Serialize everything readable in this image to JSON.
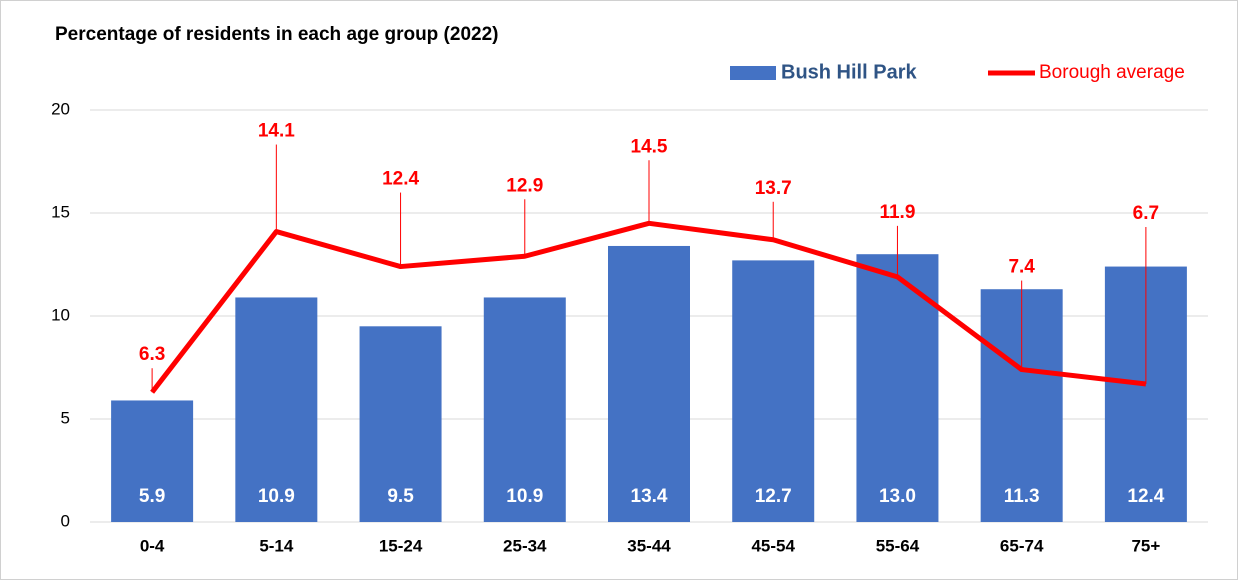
{
  "chart_data": {
    "type": "bar",
    "title": "Percentage of residents in each age group (2022)",
    "categories": [
      "0-4",
      "5-14",
      "15-24",
      "25-34",
      "35-44",
      "45-54",
      "55-64",
      "65-74",
      "75+"
    ],
    "series": [
      {
        "name": "Bush Hill Park",
        "type": "bar",
        "color": "#4472c4",
        "values": [
          5.9,
          10.9,
          9.5,
          10.9,
          13.4,
          12.7,
          13.0,
          11.3,
          12.4
        ],
        "value_labels": [
          "5.9",
          "10.9",
          "9.5",
          "10.9",
          "13.4",
          "12.7",
          "13.0",
          "11.3",
          "12.4"
        ]
      },
      {
        "name": "Borough average",
        "type": "line",
        "color": "#ff0000",
        "values": [
          6.3,
          14.1,
          12.4,
          12.9,
          14.5,
          13.7,
          11.9,
          7.4,
          6.7
        ],
        "value_labels": [
          "6.3",
          "14.1",
          "12.4",
          "12.9",
          "14.5",
          "13.7",
          "11.9",
          "7.4",
          "6.7"
        ]
      }
    ],
    "ylim": [
      0,
      20
    ],
    "yticks": [
      0,
      5,
      10,
      15,
      20
    ],
    "grid": true,
    "legend": "top-right"
  }
}
